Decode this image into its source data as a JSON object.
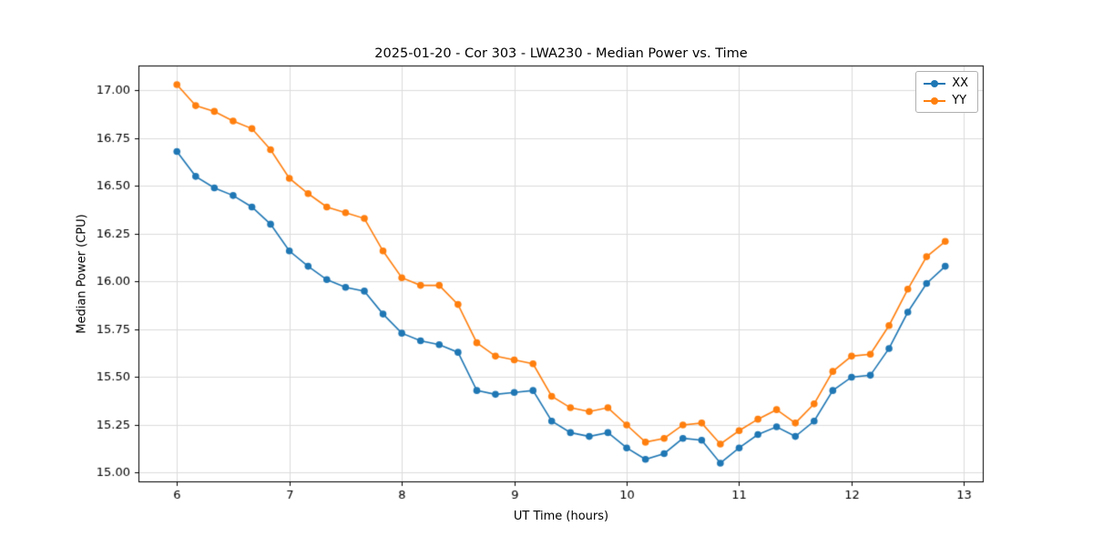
{
  "chart_data": {
    "type": "line",
    "title": "2025-01-20 - Cor 303 - LWA230 - Median Power vs. Time",
    "xlabel": "UT Time (hours)",
    "ylabel": "Median Power (CPU)",
    "xlim": [
      5.658,
      13.175
    ],
    "ylim": [
      14.95,
      17.13
    ],
    "xticks": [
      6,
      7,
      8,
      9,
      10,
      11,
      12,
      13
    ],
    "yticks": [
      15.0,
      15.25,
      15.5,
      15.75,
      16.0,
      16.25,
      16.5,
      16.75,
      17.0
    ],
    "grid": true,
    "legend_position": "upper right",
    "x": [
      6.0,
      6.167,
      6.333,
      6.5,
      6.667,
      6.833,
      7.0,
      7.167,
      7.333,
      7.5,
      7.667,
      7.833,
      8.0,
      8.167,
      8.333,
      8.5,
      8.667,
      8.833,
      9.0,
      9.167,
      9.333,
      9.5,
      9.667,
      9.833,
      10.0,
      10.167,
      10.333,
      10.5,
      10.667,
      10.833,
      11.0,
      11.167,
      11.333,
      11.5,
      11.667,
      11.833,
      12.0,
      12.167,
      12.333,
      12.5,
      12.667,
      12.833
    ],
    "series": [
      {
        "name": "XX",
        "color": "#1f77b4",
        "values": [
          16.68,
          16.55,
          16.49,
          16.45,
          16.39,
          16.3,
          16.16,
          16.08,
          16.01,
          15.97,
          15.95,
          15.83,
          15.73,
          15.69,
          15.67,
          15.63,
          15.43,
          15.41,
          15.42,
          15.43,
          15.27,
          15.21,
          15.19,
          15.21,
          15.13,
          15.07,
          15.1,
          15.18,
          15.17,
          15.05,
          15.13,
          15.2,
          15.24,
          15.19,
          15.27,
          15.43,
          15.5,
          15.51,
          15.65,
          15.84,
          15.99,
          16.08
        ]
      },
      {
        "name": "YY",
        "color": "#ff7f0e",
        "values": [
          17.03,
          16.92,
          16.89,
          16.84,
          16.8,
          16.69,
          16.54,
          16.46,
          16.39,
          16.36,
          16.33,
          16.16,
          16.02,
          15.98,
          15.98,
          15.88,
          15.68,
          15.61,
          15.59,
          15.57,
          15.4,
          15.34,
          15.32,
          15.34,
          15.25,
          15.16,
          15.18,
          15.25,
          15.26,
          15.15,
          15.22,
          15.28,
          15.33,
          15.26,
          15.36,
          15.53,
          15.61,
          15.62,
          15.77,
          15.96,
          16.13,
          16.21
        ]
      }
    ]
  }
}
